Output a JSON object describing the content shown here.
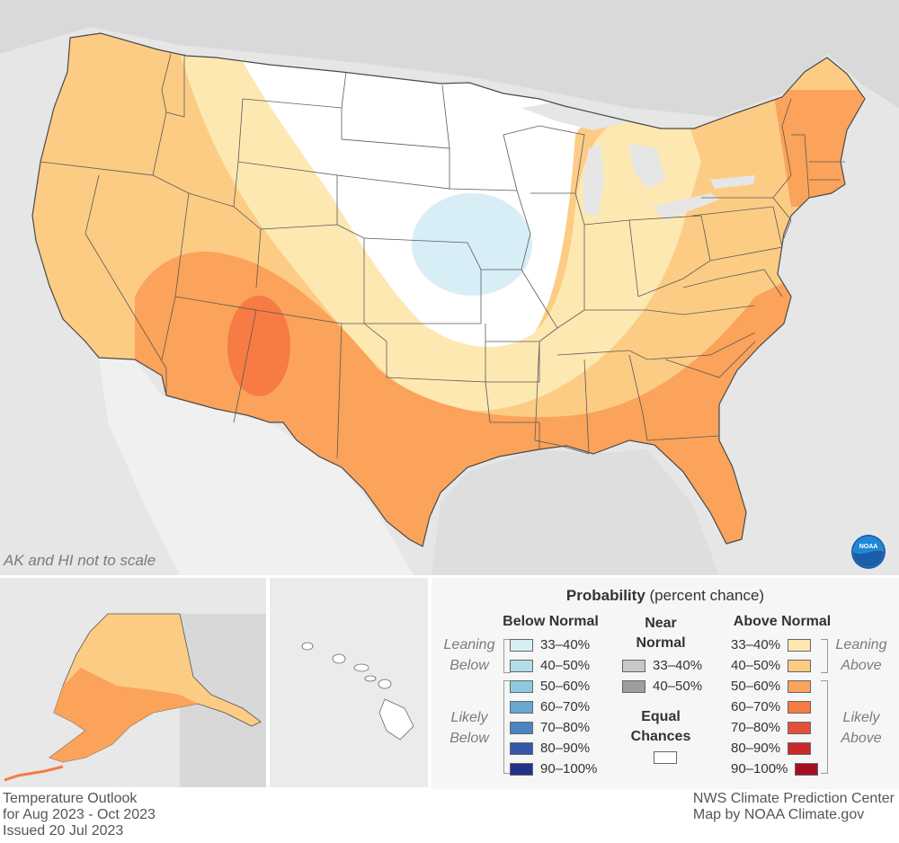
{
  "map": {
    "note": "AK and HI not to scale",
    "colors": {
      "equal_chances": "#ffffff",
      "below_33_40": "#d8eef6",
      "above_33_40": "#fde8b2",
      "above_40_50": "#fccc85",
      "above_50_60": "#fba35a",
      "above_60_70": "#f67b45",
      "background": "#e8e8e8",
      "land_outside": "#f0f0f0",
      "border": "#555555"
    },
    "logo": "noaa-logo"
  },
  "legend": {
    "title_bold": "Probability",
    "title_rest": " (percent chance)",
    "below": {
      "heading": "Below Normal",
      "leaning_label_1": "Leaning",
      "leaning_label_2": "Below",
      "likely_label_1": "Likely",
      "likely_label_2": "Below",
      "items": [
        {
          "label": "33–40%",
          "color": "#d8eef6"
        },
        {
          "label": "40–50%",
          "color": "#b4dceb"
        },
        {
          "label": "50–60%",
          "color": "#8ec8e0"
        },
        {
          "label": "60–70%",
          "color": "#6aa6d2"
        },
        {
          "label": "70–80%",
          "color": "#4a84c4"
        },
        {
          "label": "80–90%",
          "color": "#3558ad"
        },
        {
          "label": "90–100%",
          "color": "#24318a"
        }
      ]
    },
    "near": {
      "heading_1": "Near",
      "heading_2": "Normal",
      "items": [
        {
          "label": "33–40%",
          "color": "#c8c8c8"
        },
        {
          "label": "40–50%",
          "color": "#9e9e9e"
        }
      ],
      "equal_1": "Equal",
      "equal_2": "Chances",
      "equal_color": "#ffffff"
    },
    "above": {
      "heading": "Above Normal",
      "leaning_label_1": "Leaning",
      "leaning_label_2": "Above",
      "likely_label_1": "Likely",
      "likely_label_2": "Above",
      "items": [
        {
          "label": "33–40%",
          "color": "#fde8b2"
        },
        {
          "label": "40–50%",
          "color": "#fccc85"
        },
        {
          "label": "50–60%",
          "color": "#fba35a"
        },
        {
          "label": "60–70%",
          "color": "#f67b45"
        },
        {
          "label": "70–80%",
          "color": "#e4513a"
        },
        {
          "label": "80–90%",
          "color": "#c82a2c"
        },
        {
          "label": "90–100%",
          "color": "#a60d25"
        }
      ]
    }
  },
  "footer": {
    "left_1": "Temperature Outlook",
    "left_2": "for Aug 2023 - Oct 2023",
    "left_3": "Issued 20 Jul 2023",
    "right_1": "NWS Climate Prediction Center",
    "right_2": "Map by NOAA Climate.gov"
  }
}
